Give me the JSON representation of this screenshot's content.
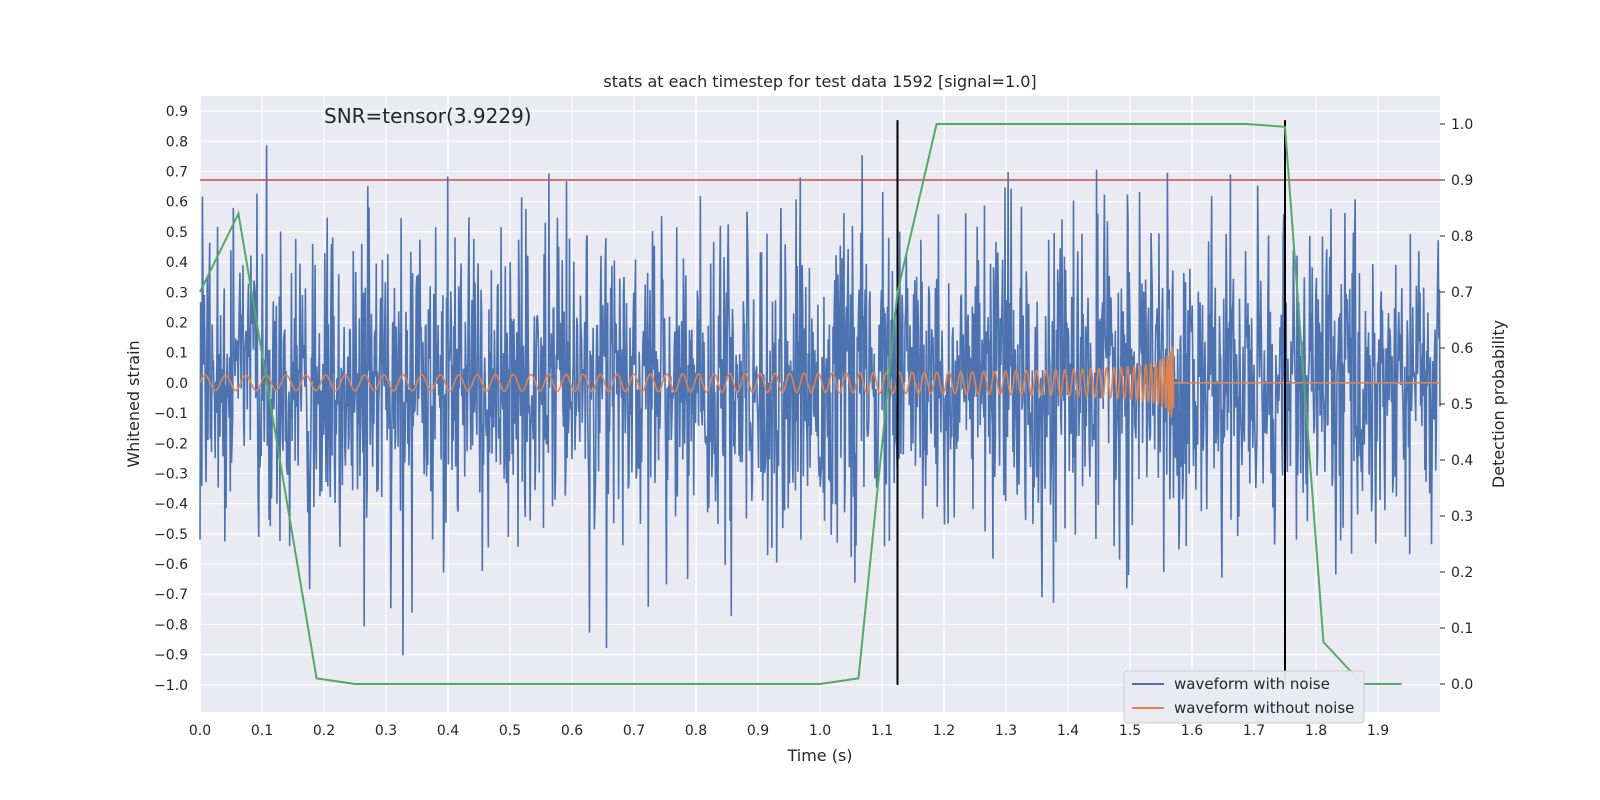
{
  "chart_data": {
    "type": "line",
    "title": "stats at each timestep for test data 1592 [signal=1.0]",
    "annotation": "SNR=tensor(3.9229)",
    "xlabel": "Time (s)",
    "ylabel": "Whitened strain",
    "y2label": "Detection probability",
    "xlim": [
      0.0,
      2.0
    ],
    "ylim": [
      -1.09,
      0.95
    ],
    "y2lim": [
      -0.05,
      1.05
    ],
    "xticks": [
      "0.0",
      "0.1",
      "0.2",
      "0.3",
      "0.4",
      "0.5",
      "0.6",
      "0.7",
      "0.8",
      "0.9",
      "1.0",
      "1.1",
      "1.2",
      "1.3",
      "1.4",
      "1.5",
      "1.6",
      "1.7",
      "1.8",
      "1.9"
    ],
    "yticks": [
      "0.9",
      "0.8",
      "0.7",
      "0.6",
      "0.5",
      "0.4",
      "0.3",
      "0.2",
      "0.1",
      "0.0",
      "−0.1",
      "−0.2",
      "−0.3",
      "−0.4",
      "−0.5",
      "−0.6",
      "−0.7",
      "−0.8",
      "−0.9",
      "−1.0"
    ],
    "y2ticks": [
      "1.0",
      "0.9",
      "0.8",
      "0.7",
      "0.6",
      "0.5",
      "0.4",
      "0.3",
      "0.2",
      "0.1",
      "0.0"
    ],
    "grid": true,
    "legend_position": "lower-right",
    "legend": [
      "waveform with noise",
      "waveform without noise"
    ],
    "colors": {
      "noisy": "#4c72b0",
      "clean": "#dd8452",
      "probability": "#55a868",
      "threshold": "#c44e52",
      "markers": "#000000",
      "background": "#eaeaf2",
      "grid": "#ffffff"
    },
    "threshold": {
      "axis": "right",
      "y": 0.9
    },
    "vertical_markers": [
      {
        "x": 1.125,
        "y_range": [
          -1.0,
          0.87
        ]
      },
      {
        "x": 1.75,
        "y_range": [
          -1.0,
          0.87
        ]
      }
    ],
    "series": [
      {
        "name": "waveform with noise",
        "axis": "left",
        "generated": "gaussian-noise",
        "x_range": [
          0.0,
          2.0
        ],
        "points": 2048,
        "std": 0.25,
        "min": -1.0,
        "max": 0.87
      },
      {
        "name": "waveform without noise",
        "axis": "left",
        "generated": "chirp",
        "x_range": [
          0.0,
          2.0
        ],
        "chirp_end": 1.57,
        "start_frequency": 30,
        "end_frequency": 260,
        "start_amplitude": 0.025,
        "end_amplitude": 0.12
      },
      {
        "name": "detection probability",
        "axis": "right",
        "x": [
          0.0,
          0.062,
          0.188,
          0.25,
          1.0,
          1.062,
          1.125,
          1.188,
          1.688,
          1.75,
          1.812,
          1.875,
          1.938
        ],
        "y": [
          0.7,
          0.84,
          0.01,
          0.0,
          0.0,
          0.01,
          0.7,
          1.0,
          1.0,
          0.995,
          0.075,
          0.0,
          0.0
        ]
      }
    ]
  }
}
